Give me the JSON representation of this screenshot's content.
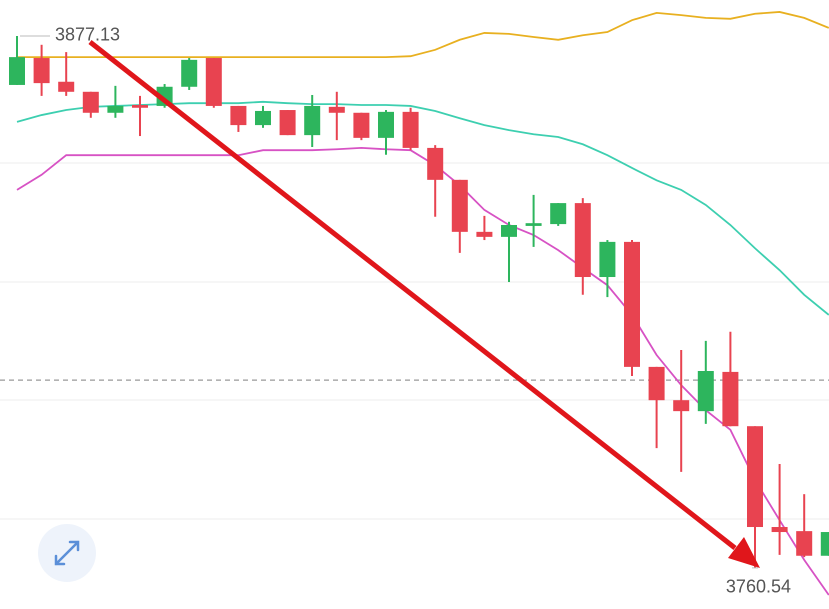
{
  "chart_data": {
    "type": "candlestick",
    "ylim": [
      3751.53,
      3885.02
    ],
    "up_color": "#2db55d",
    "down_color": "#e84350",
    "open": [
      3866.4,
      3872.3,
      3867.1,
      3864.9,
      3860.3,
      3862.0,
      3861.8,
      3866.0,
      3872.3,
      3861.8,
      3857.6,
      3860.9,
      3855.4,
      3861.6,
      3860.3,
      3854.8,
      3860.5,
      3852.6,
      3845.6,
      3834.2,
      3833.1,
      3835.5,
      3835.9,
      3840.5,
      3824.3,
      3832.0,
      3804.6,
      3797.3,
      3794.9,
      3803.5,
      3791.6,
      3769.5,
      3768.6,
      3763.2
    ],
    "high": [
      3877.13,
      3875.2,
      3873.6,
      3864.9,
      3866.2,
      3864.0,
      3866.6,
      3872.3,
      3872.3,
      3861.8,
      3861.8,
      3860.9,
      3864.2,
      3864.9,
      3860.3,
      3860.9,
      3861.4,
      3853.2,
      3845.6,
      3837.7,
      3836.4,
      3842.3,
      3840.5,
      3841.6,
      3832.4,
      3832.4,
      3804.6,
      3808.3,
      3810.3,
      3812.3,
      3791.6,
      3783.3,
      3776.7,
      3768.4
    ],
    "low": [
      3866.4,
      3864.0,
      3864.0,
      3859.2,
      3859.2,
      3855.2,
      3861.4,
      3865.3,
      3861.4,
      3856.1,
      3857.0,
      3855.4,
      3852.8,
      3854.3,
      3854.3,
      3851.1,
      3852.1,
      3837.5,
      3829.6,
      3832.4,
      3823.2,
      3830.9,
      3835.5,
      3820.4,
      3819.9,
      3802.6,
      3786.8,
      3781.6,
      3792.1,
      3791.6,
      3760.54,
      3763.4,
      3762.9,
      3763.2
    ],
    "close": [
      3872.5,
      3866.8,
      3864.9,
      3860.3,
      3861.8,
      3861.4,
      3866.0,
      3871.9,
      3861.8,
      3857.6,
      3860.7,
      3855.4,
      3861.8,
      3860.3,
      3854.8,
      3860.5,
      3852.6,
      3845.6,
      3834.2,
      3833.1,
      3835.7,
      3836.1,
      3840.5,
      3824.3,
      3832.0,
      3804.6,
      3797.3,
      3794.9,
      3803.7,
      3791.6,
      3769.5,
      3768.4,
      3763.2,
      3768.4
    ],
    "series": [
      {
        "color": "#e8b020",
        "values": [
          3872.5,
          3872.5,
          3872.5,
          3872.5,
          3872.5,
          3872.5,
          3872.5,
          3872.5,
          3872.5,
          3872.5,
          3872.5,
          3872.5,
          3872.5,
          3872.5,
          3872.5,
          3872.5,
          3872.7,
          3874.1,
          3876.3,
          3877.8,
          3877.6,
          3876.9,
          3876.3,
          3877.3,
          3878.0,
          3880.6,
          3882.2,
          3881.7,
          3881.1,
          3880.9,
          3882.0,
          3882.4,
          3881.1,
          3878.9
        ]
      },
      {
        "color": "#3dcfb0",
        "values": [
          3858.3,
          3859.8,
          3860.9,
          3861.6,
          3861.8,
          3862.0,
          3862.2,
          3862.4,
          3862.4,
          3862.4,
          3862.7,
          3862.4,
          3862.2,
          3862.2,
          3862.0,
          3862.0,
          3861.8,
          3860.7,
          3859.1,
          3857.6,
          3856.5,
          3855.6,
          3855.0,
          3853.4,
          3851.0,
          3848.2,
          3845.5,
          3843.4,
          3840.1,
          3835.7,
          3830.6,
          3825.8,
          3820.4,
          3816.0
        ]
      },
      {
        "color": "#d752c4",
        "values": [
          3843.4,
          3846.7,
          3851.0,
          3851.0,
          3851.0,
          3851.0,
          3851.0,
          3851.0,
          3851.0,
          3851.0,
          3852.1,
          3852.1,
          3852.1,
          3852.3,
          3852.6,
          3852.3,
          3852.1,
          3848.8,
          3844.4,
          3839.0,
          3835.7,
          3833.5,
          3830.2,
          3826.3,
          3822.5,
          3816.0,
          3807.2,
          3800.6,
          3795.1,
          3790.8,
          3779.8,
          3771.0,
          3762.3,
          3754.6
        ]
      }
    ],
    "reference_line": 3801.7,
    "high_label": "3877.13",
    "low_label": "3760.54"
  }
}
